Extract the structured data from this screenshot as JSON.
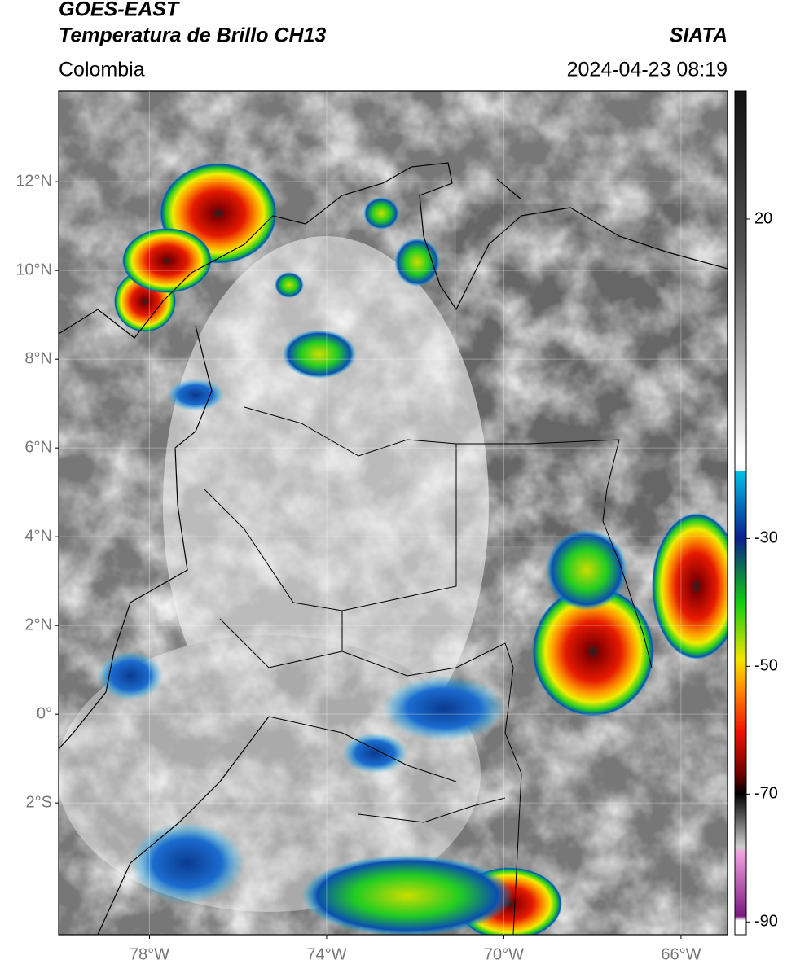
{
  "header": {
    "title": "GOES-EAST",
    "subtitle": "Temperatura de Brillo CH13",
    "source": "SIATA",
    "region": "Colombia",
    "timestamp": "2024-04-23 08:19"
  },
  "map": {
    "lonlim": [
      -80.05,
      -64.95
    ],
    "latlim": [
      -4.97,
      14.04
    ],
    "lat_ticks": [
      {
        "value": 12,
        "label": "12°N"
      },
      {
        "value": 10,
        "label": "10°N"
      },
      {
        "value": 8,
        "label": "8°N"
      },
      {
        "value": 6,
        "label": "6°N"
      },
      {
        "value": 4,
        "label": "4°N"
      },
      {
        "value": 2,
        "label": "2°N"
      },
      {
        "value": 0,
        "label": "0°"
      },
      {
        "value": -2,
        "label": "2°S"
      }
    ],
    "lon_ticks": [
      {
        "value": -78,
        "label": "78°W"
      },
      {
        "value": -74,
        "label": "74°W"
      },
      {
        "value": -70,
        "label": "70°W"
      },
      {
        "value": -66,
        "label": "66°W"
      }
    ]
  },
  "colorbar": {
    "range": [
      40,
      -92
    ],
    "ticks": [
      20,
      -30,
      -50,
      -70,
      -90
    ]
  }
}
